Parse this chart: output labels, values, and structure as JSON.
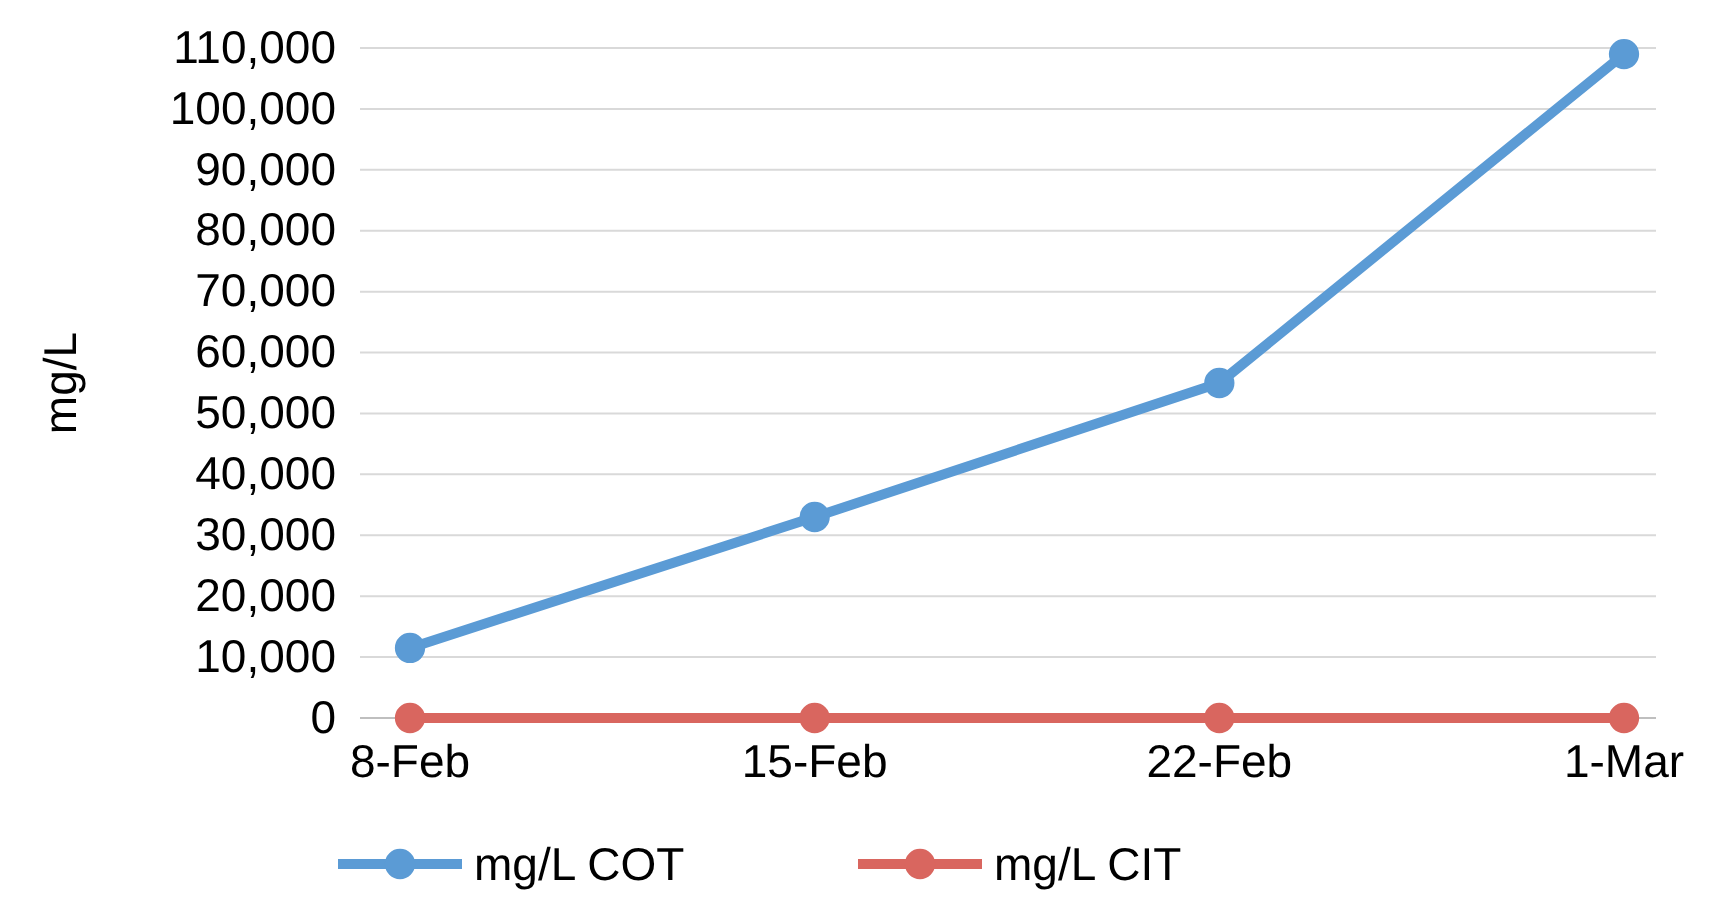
{
  "chart_data": {
    "type": "line",
    "ylabel": "mg/L",
    "categories": [
      "8-Feb",
      "15-Feb",
      "22-Feb",
      "1-Mar"
    ],
    "series": [
      {
        "name": "mg/L COT",
        "color": "#5b9bd5",
        "values": [
          11500,
          33000,
          55000,
          109000
        ]
      },
      {
        "name": "mg/L CIT",
        "color": "#d9665f",
        "values": [
          0,
          0,
          0,
          0
        ]
      }
    ],
    "ylim": [
      0,
      110000
    ],
    "yticks": [
      {
        "value": 0,
        "label": "0"
      },
      {
        "value": 10000,
        "label": "10,000"
      },
      {
        "value": 20000,
        "label": "20,000"
      },
      {
        "value": 30000,
        "label": "30,000"
      },
      {
        "value": 40000,
        "label": "40,000"
      },
      {
        "value": 50000,
        "label": "50,000"
      },
      {
        "value": 60000,
        "label": "60,000"
      },
      {
        "value": 70000,
        "label": "70,000"
      },
      {
        "value": 80000,
        "label": "80,000"
      },
      {
        "value": 90000,
        "label": "90,000"
      },
      {
        "value": 100000,
        "label": "100,000"
      },
      {
        "value": 110000,
        "label": "110,000"
      }
    ],
    "grid": "y",
    "legend": "bottom",
    "marker": "circle",
    "line_style": "solid"
  }
}
